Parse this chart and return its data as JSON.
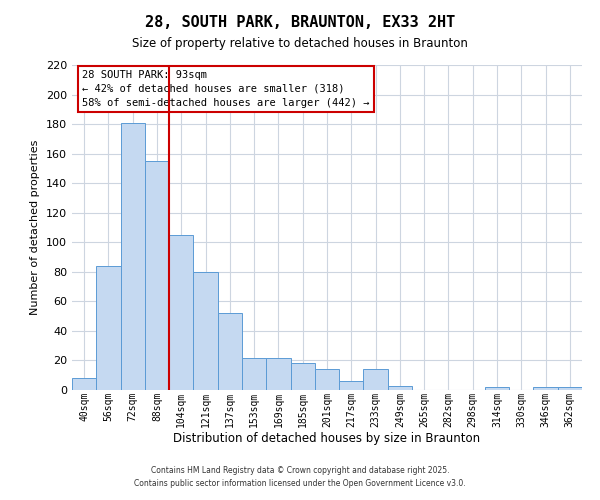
{
  "title": "28, SOUTH PARK, BRAUNTON, EX33 2HT",
  "subtitle": "Size of property relative to detached houses in Braunton",
  "xlabel": "Distribution of detached houses by size in Braunton",
  "ylabel": "Number of detached properties",
  "footer_line1": "Contains HM Land Registry data © Crown copyright and database right 2025.",
  "footer_line2": "Contains public sector information licensed under the Open Government Licence v3.0.",
  "bar_labels": [
    "40sqm",
    "56sqm",
    "72sqm",
    "88sqm",
    "104sqm",
    "121sqm",
    "137sqm",
    "153sqm",
    "169sqm",
    "185sqm",
    "201sqm",
    "217sqm",
    "233sqm",
    "249sqm",
    "265sqm",
    "282sqm",
    "298sqm",
    "314sqm",
    "330sqm",
    "346sqm",
    "362sqm"
  ],
  "bar_values": [
    8,
    84,
    181,
    155,
    105,
    80,
    52,
    22,
    22,
    18,
    14,
    6,
    14,
    3,
    0,
    0,
    0,
    2,
    0,
    2,
    2
  ],
  "bar_color": "#c5d9f1",
  "bar_edgecolor": "#5b9bd5",
  "ylim": [
    0,
    220
  ],
  "yticks": [
    0,
    20,
    40,
    60,
    80,
    100,
    120,
    140,
    160,
    180,
    200,
    220
  ],
  "vline_color": "#cc0000",
  "vline_x_index": 3.5,
  "annotation_title": "28 SOUTH PARK: 93sqm",
  "annotation_line1": "← 42% of detached houses are smaller (318)",
  "annotation_line2": "58% of semi-detached houses are larger (442) →",
  "bg_color": "#ffffff",
  "grid_color": "#cdd5e0"
}
